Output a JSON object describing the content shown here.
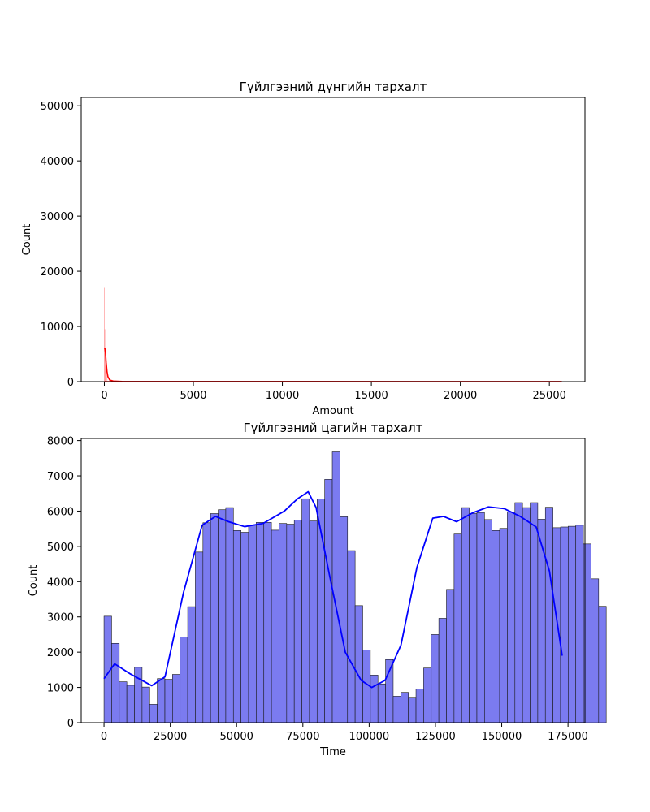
{
  "chart_data": [
    {
      "type": "histogram",
      "title": "Гүйлгээний дүнгийн тархалт",
      "xlabel": "Amount",
      "ylabel": "Count",
      "xlim": [
        -1300,
        27000
      ],
      "ylim": [
        0,
        51500
      ],
      "xticks": [
        0,
        5000,
        10000,
        15000,
        20000,
        25000
      ],
      "yticks": [
        0,
        10000,
        20000,
        30000,
        40000,
        50000
      ],
      "bar_color": "#ff0000",
      "kde_color": "#ff0000",
      "kde": true,
      "grid": false,
      "spikes": [
        {
          "x": 0,
          "count": 17000
        },
        {
          "x": 30,
          "count": 9500
        },
        {
          "x": 60,
          "count": 6000
        },
        {
          "x": 100,
          "count": 3000
        },
        {
          "x": 150,
          "count": 1500
        }
      ],
      "kde_points": [
        {
          "x": 0,
          "y": 6100
        },
        {
          "x": 30,
          "y": 6000
        },
        {
          "x": 60,
          "y": 5300
        },
        {
          "x": 100,
          "y": 3500
        },
        {
          "x": 150,
          "y": 1800
        },
        {
          "x": 200,
          "y": 900
        },
        {
          "x": 300,
          "y": 300
        },
        {
          "x": 500,
          "y": 100
        },
        {
          "x": 1000,
          "y": 30
        },
        {
          "x": 5000,
          "y": 5
        },
        {
          "x": 25700,
          "y": 0
        }
      ],
      "x_end": 25700
    },
    {
      "type": "histogram",
      "title": "Гүйлгээний цагийн тархалт",
      "xlabel": "Time",
      "ylabel": "Count",
      "xlim": [
        -8600,
        181400
      ],
      "ylim": [
        0,
        8060
      ],
      "xticks": [
        0,
        25000,
        50000,
        75000,
        100000,
        125000,
        150000,
        175000
      ],
      "yticks": [
        0,
        1000,
        2000,
        3000,
        4000,
        5000,
        6000,
        7000,
        8000
      ],
      "bar_color": "#7b7bf0",
      "kde_color": "#0000ff",
      "kde": true,
      "grid": false,
      "bin_start": 0,
      "bin_width": 2870,
      "counts": [
        3020,
        2250,
        1160,
        1060,
        1570,
        1010,
        520,
        1250,
        1230,
        1370,
        2430,
        3290,
        4840,
        5670,
        5930,
        6040,
        6100,
        5450,
        5400,
        5610,
        5680,
        5680,
        5460,
        5650,
        5630,
        5750,
        6350,
        5720,
        6340,
        6900,
        7680,
        5840,
        4880,
        3320,
        2060,
        1350,
        1100,
        1790,
        750,
        860,
        720,
        960,
        1550,
        2500,
        2960,
        3780,
        5350,
        6100,
        5930,
        5960,
        5760,
        5450,
        5510,
        5980,
        6240,
        6100,
        6240,
        5770,
        6110,
        5530,
        5550,
        5570,
        5600,
        5070,
        4080,
        3300
      ],
      "kde_points": [
        {
          "x": 0,
          "y": 1250
        },
        {
          "x": 4000,
          "y": 1670
        },
        {
          "x": 10000,
          "y": 1380
        },
        {
          "x": 18000,
          "y": 1050
        },
        {
          "x": 23000,
          "y": 1300
        },
        {
          "x": 30000,
          "y": 3700
        },
        {
          "x": 37000,
          "y": 5600
        },
        {
          "x": 42000,
          "y": 5850
        },
        {
          "x": 47000,
          "y": 5700
        },
        {
          "x": 53000,
          "y": 5560
        },
        {
          "x": 60000,
          "y": 5650
        },
        {
          "x": 68000,
          "y": 6000
        },
        {
          "x": 73000,
          "y": 6350
        },
        {
          "x": 77000,
          "y": 6550
        },
        {
          "x": 80000,
          "y": 6100
        },
        {
          "x": 85000,
          "y": 4200
        },
        {
          "x": 91000,
          "y": 2000
        },
        {
          "x": 97000,
          "y": 1200
        },
        {
          "x": 101000,
          "y": 1000
        },
        {
          "x": 106000,
          "y": 1200
        },
        {
          "x": 112000,
          "y": 2200
        },
        {
          "x": 118000,
          "y": 4400
        },
        {
          "x": 124000,
          "y": 5800
        },
        {
          "x": 128000,
          "y": 5850
        },
        {
          "x": 133000,
          "y": 5700
        },
        {
          "x": 139000,
          "y": 5950
        },
        {
          "x": 145000,
          "y": 6120
        },
        {
          "x": 151000,
          "y": 6070
        },
        {
          "x": 157000,
          "y": 5850
        },
        {
          "x": 163000,
          "y": 5550
        },
        {
          "x": 168000,
          "y": 4300
        },
        {
          "x": 171000,
          "y": 2800
        },
        {
          "x": 172800,
          "y": 1900
        }
      ]
    }
  ]
}
